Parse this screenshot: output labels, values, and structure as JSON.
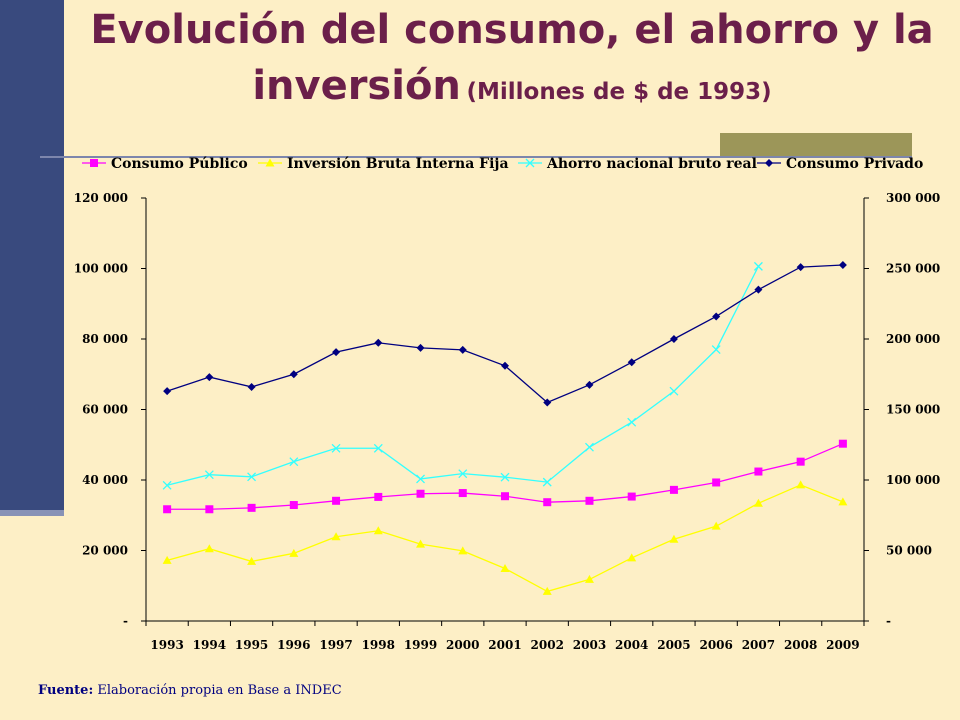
{
  "title": {
    "line1": "Evolución del consumo, el ahorro y la",
    "line2_main": "inversión",
    "line2_sub": "(Millones de $ de 1993)"
  },
  "source": {
    "label": "Fuente:",
    "text": " Elaboración propia en Base a INDEC"
  },
  "colors": {
    "background": "#fdefc6",
    "sidebar": "#394a7e",
    "title": "#6b1f4a",
    "source": "#000080"
  },
  "chart_data": {
    "type": "line",
    "title": "",
    "xlabel": "",
    "ylabel": "",
    "legend_position": "top",
    "grid": false,
    "x": [
      "1993",
      "1994",
      "1995",
      "1996",
      "1997",
      "1998",
      "1999",
      "2000",
      "2001",
      "2002",
      "2003",
      "2004",
      "2005",
      "2006",
      "2007",
      "2008",
      "2009"
    ],
    "y_left": {
      "ylim": [
        0,
        120000
      ],
      "ticks": [
        0,
        20000,
        40000,
        60000,
        80000,
        100000,
        120000
      ],
      "tick_labels": [
        "-",
        "20 000",
        "40 000",
        "60 000",
        "80 000",
        "100 000",
        "120 000"
      ]
    },
    "y_right": {
      "ylim": [
        0,
        300000
      ],
      "ticks": [
        0,
        50000,
        100000,
        150000,
        200000,
        250000,
        300000
      ],
      "tick_labels": [
        "-",
        "50 000",
        "100 000",
        "150 000",
        "200 000",
        "250 000",
        "300 000"
      ]
    },
    "series": [
      {
        "name": "Consumo Público",
        "axis": "left",
        "color": "#ff00ff",
        "marker": "square",
        "values": [
          31700,
          31700,
          32100,
          32900,
          34100,
          35200,
          36100,
          36300,
          35400,
          33700,
          34100,
          35300,
          37200,
          39300,
          42400,
          45200,
          50300
        ]
      },
      {
        "name": "Inversión Bruta Interna Fija",
        "axis": "left",
        "color": "#ffff00",
        "marker": "triangle",
        "values": [
          17200,
          20500,
          16900,
          19200,
          23900,
          25600,
          21800,
          19900,
          14900,
          8400,
          11800,
          17900,
          23200,
          26900,
          33400,
          38600,
          33800
        ]
      },
      {
        "name": "Ahorro nacional bruto real",
        "axis": "left",
        "color": "#33ffff",
        "marker": "x",
        "values": [
          38500,
          41500,
          40900,
          45200,
          49000,
          49000,
          40300,
          41800,
          40800,
          39400,
          49300,
          56400,
          65200,
          77000,
          100600,
          null,
          null
        ]
      },
      {
        "name": "Consumo Privado",
        "axis": "right",
        "color": "#000080",
        "marker": "diamond",
        "values": [
          163000,
          173000,
          166000,
          175000,
          190700,
          197300,
          193700,
          192300,
          181000,
          155000,
          167500,
          183500,
          200000,
          216000,
          235000,
          251000,
          252500
        ]
      }
    ]
  }
}
